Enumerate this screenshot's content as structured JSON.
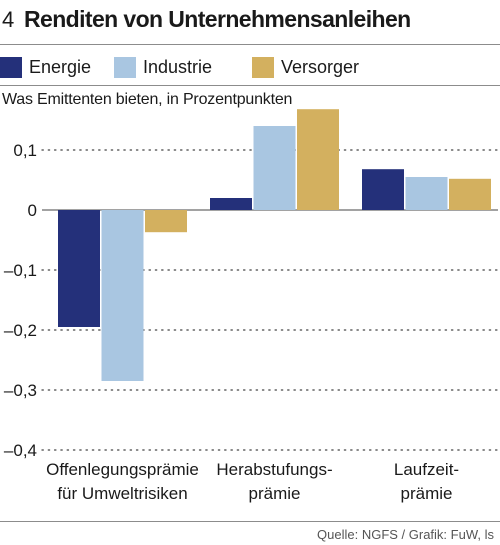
{
  "header": {
    "figure_number": "4",
    "title": "Renditen von Unternehmensanleihen"
  },
  "subtitle": "Was Emittenten bieten, in Prozentpunkten",
  "source": "Quelle: NGFS / Grafik: FuW, ls",
  "colors": {
    "Energie": "#24307a",
    "Industrie": "#a9c6e1",
    "Versorger": "#d3b05f",
    "grid": "#444444",
    "rule": "#8c8c8c"
  },
  "chart_data": {
    "type": "bar",
    "categories": [
      [
        "Offenlegungsprämie",
        "für Umweltrisiken"
      ],
      [
        "Herabstufungs-",
        "prämie"
      ],
      [
        "Laufzeit-",
        "prämie"
      ]
    ],
    "series": [
      {
        "name": "Energie",
        "values": [
          -0.195,
          0.02,
          0.068
        ]
      },
      {
        "name": "Industrie",
        "values": [
          -0.285,
          0.14,
          0.055
        ]
      },
      {
        "name": "Versorger",
        "values": [
          -0.037,
          0.168,
          0.052
        ]
      }
    ],
    "yticks": [
      0.1,
      0,
      -0.1,
      -0.2,
      -0.3,
      -0.4
    ],
    "ytick_labels": [
      "0,1",
      "0",
      "–0,1",
      "–0,2",
      "–0,3",
      "–0,4"
    ],
    "ylim": [
      -0.4,
      0.18
    ],
    "grid": true,
    "legend_position": "top"
  }
}
